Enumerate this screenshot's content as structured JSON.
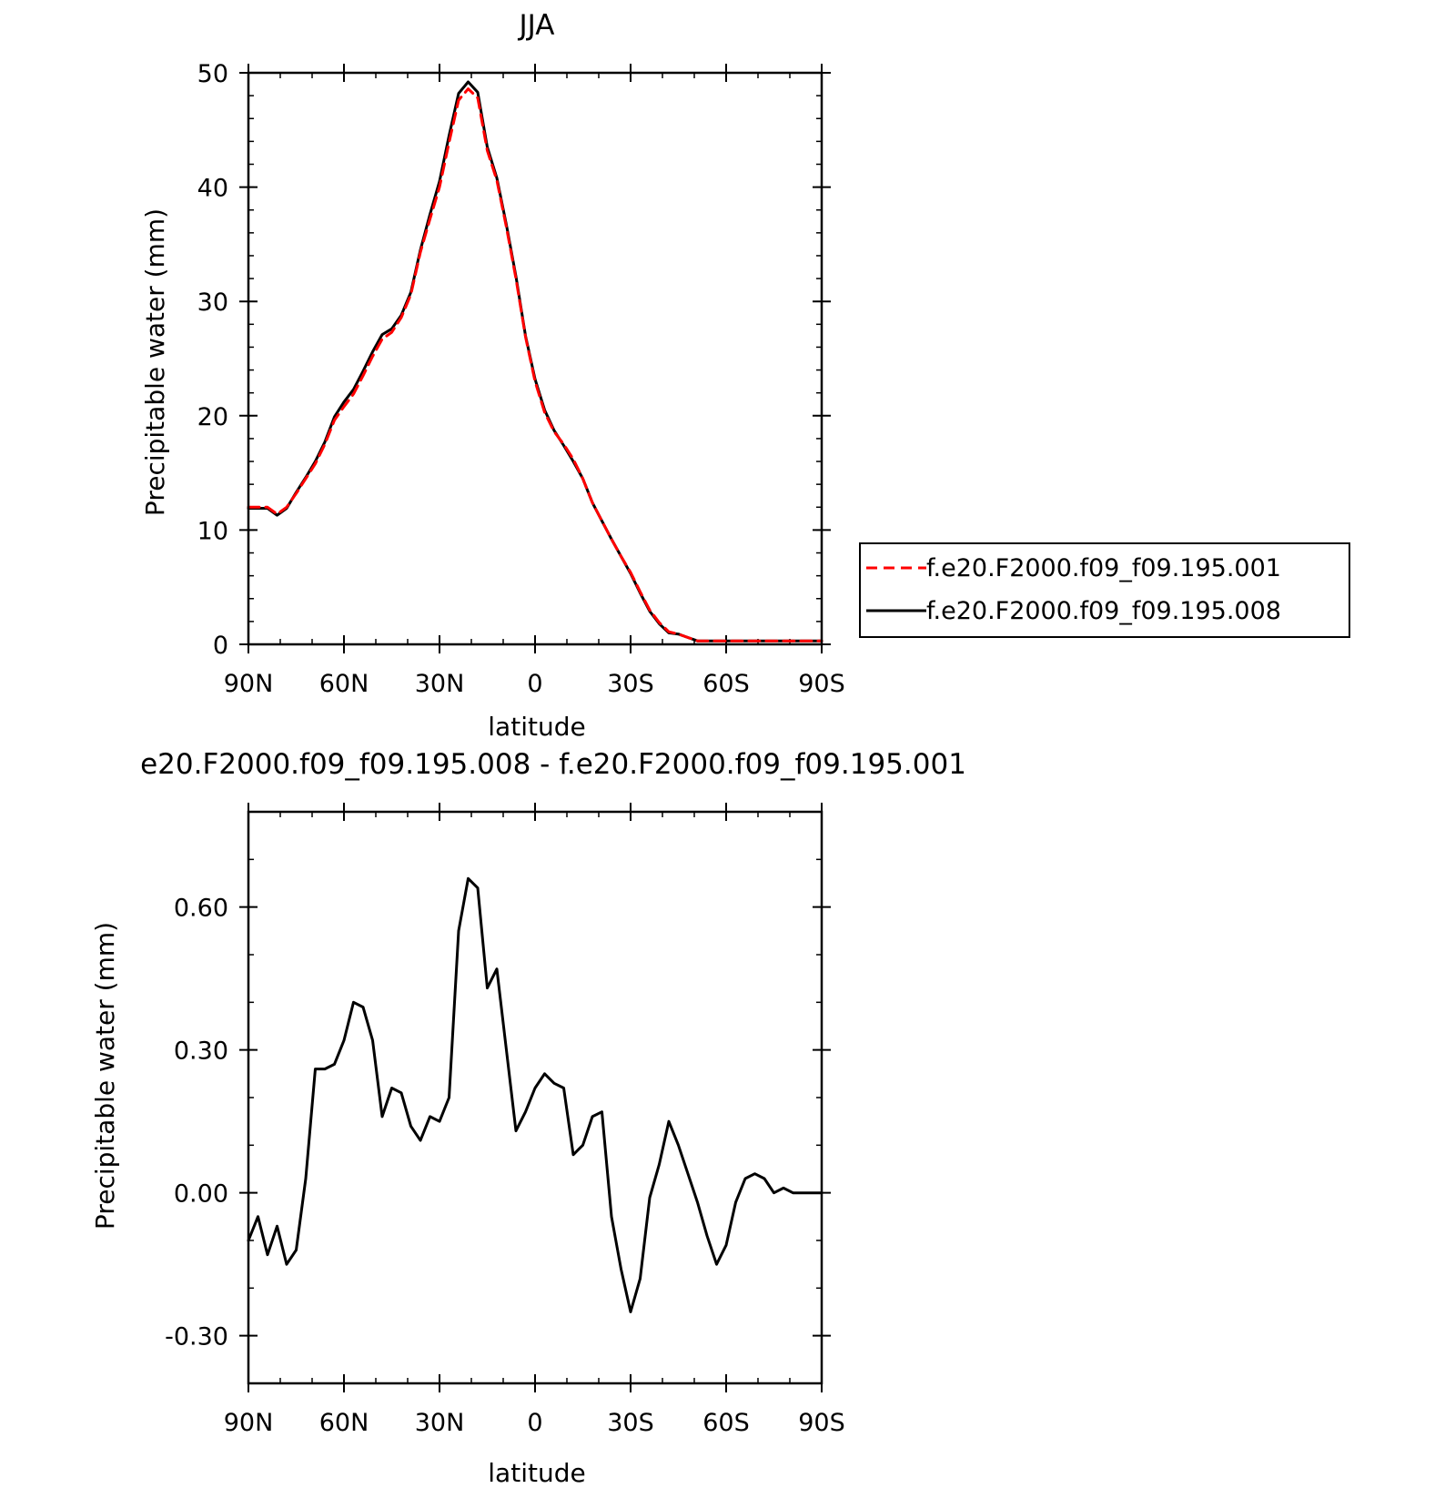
{
  "chart_data": [
    {
      "type": "line",
      "title": "JJA",
      "xlabel": "latitude",
      "ylabel": "Precipitable water (mm)",
      "x_axis_note": "latitude in degrees, north positive; axis runs from 90N on the left to 90S on the right",
      "xlim": [
        90,
        -90
      ],
      "ylim": [
        0,
        50
      ],
      "grid": false,
      "x_ticks": [
        {
          "value": 90,
          "label": "90N"
        },
        {
          "value": 60,
          "label": "60N"
        },
        {
          "value": 30,
          "label": "30N"
        },
        {
          "value": 0,
          "label": "0"
        },
        {
          "value": -30,
          "label": "30S"
        },
        {
          "value": -60,
          "label": "60S"
        },
        {
          "value": -90,
          "label": "90S"
        }
      ],
      "y_ticks": [
        {
          "value": 0,
          "label": "0"
        },
        {
          "value": 10,
          "label": "10"
        },
        {
          "value": 20,
          "label": "20"
        },
        {
          "value": 30,
          "label": "30"
        },
        {
          "value": 40,
          "label": "40"
        },
        {
          "value": 50,
          "label": "50"
        }
      ],
      "legend_position": "right, outside plot",
      "x": [
        90,
        87,
        84,
        81,
        78,
        75,
        72,
        69,
        66,
        63,
        60,
        57,
        54,
        51,
        48,
        45,
        42,
        39,
        36,
        33,
        30,
        27,
        24,
        21,
        18,
        15,
        12,
        9,
        6,
        3,
        0,
        -3,
        -6,
        -9,
        -12,
        -15,
        -18,
        -21,
        -24,
        -27,
        -30,
        -33,
        -36,
        -39,
        -42,
        -45,
        -48,
        -51,
        -54,
        -57,
        -60,
        -63,
        -66,
        -69,
        -72,
        -75,
        -78,
        -81,
        -84,
        -87,
        -90
      ],
      "series": [
        {
          "name": "f.e20.F2000.f09_f09.195.001",
          "color": "#ff0000",
          "dash": "dashed",
          "values": [
            12.0,
            12.0,
            12.0,
            11.4,
            12.0,
            13.2,
            14.5,
            15.8,
            17.5,
            19.6,
            20.8,
            21.9,
            23.5,
            25.2,
            26.7,
            27.3,
            28.6,
            30.6,
            34.3,
            37.2,
            40.0,
            43.9,
            47.6,
            48.6,
            47.8,
            43.2,
            40.6,
            36.5,
            32.0,
            26.9,
            23.0,
            20.3,
            18.6,
            17.5,
            16.2,
            14.5,
            12.4,
            10.8,
            9.2,
            7.7,
            6.3,
            4.6,
            3.0,
            1.9,
            1.1,
            0.9,
            0.6,
            0.3,
            0.3,
            0.3,
            0.3,
            0.3,
            0.3,
            0.3,
            0.3,
            0.3,
            0.3,
            0.3,
            0.3,
            0.3,
            0.3
          ]
        },
        {
          "name": "f.e20.F2000.f09_f09.195.008",
          "color": "#000000",
          "dash": "solid",
          "values": [
            11.9,
            11.9,
            11.9,
            11.3,
            11.9,
            13.3,
            14.6,
            16.0,
            17.7,
            19.9,
            21.2,
            22.3,
            23.9,
            25.6,
            27.1,
            27.6,
            28.8,
            30.8,
            34.5,
            37.6,
            40.5,
            44.5,
            48.2,
            49.2,
            48.3,
            43.5,
            40.8,
            36.7,
            32.2,
            27.0,
            23.2,
            20.5,
            18.7,
            17.4,
            16.0,
            14.5,
            12.4,
            10.8,
            9.2,
            7.7,
            6.2,
            4.5,
            2.9,
            1.8,
            1.0,
            0.9,
            0.6,
            0.3,
            0.3,
            0.3,
            0.3,
            0.3,
            0.3,
            0.3,
            0.3,
            0.3,
            0.3,
            0.3,
            0.3,
            0.3,
            0.3
          ]
        }
      ]
    },
    {
      "type": "line",
      "title": "e20.F2000.f09_f09.195.008 - f.e20.F2000.f09_f09.195.001",
      "xlabel": "latitude",
      "ylabel": "Precipitable water (mm)",
      "xlim": [
        90,
        -90
      ],
      "ylim": [
        -0.4,
        0.8
      ],
      "grid": false,
      "x_ticks": [
        {
          "value": 90,
          "label": "90N"
        },
        {
          "value": 60,
          "label": "60N"
        },
        {
          "value": 30,
          "label": "30N"
        },
        {
          "value": 0,
          "label": "0"
        },
        {
          "value": -30,
          "label": "30S"
        },
        {
          "value": -60,
          "label": "60S"
        },
        {
          "value": -90,
          "label": "90S"
        }
      ],
      "y_ticks": [
        {
          "value": -0.3,
          "label": "-0.30"
        },
        {
          "value": 0.0,
          "label": "0.00"
        },
        {
          "value": 0.3,
          "label": "0.30"
        },
        {
          "value": 0.6,
          "label": "0.60"
        }
      ],
      "x": [
        90,
        87,
        84,
        81,
        78,
        75,
        72,
        69,
        66,
        63,
        60,
        57,
        54,
        51,
        48,
        45,
        42,
        39,
        36,
        33,
        30,
        27,
        24,
        21,
        18,
        15,
        12,
        9,
        6,
        3,
        0,
        -3,
        -6,
        -9,
        -12,
        -15,
        -18,
        -21,
        -24,
        -27,
        -30,
        -33,
        -36,
        -39,
        -42,
        -45,
        -48,
        -51,
        -54,
        -57,
        -60,
        -63,
        -66,
        -69,
        -72,
        -75,
        -78,
        -81,
        -84,
        -87,
        -90
      ],
      "series": [
        {
          "color": "#000000",
          "dash": "solid",
          "values": [
            -0.1,
            -0.05,
            -0.13,
            -0.07,
            -0.15,
            -0.12,
            0.03,
            0.26,
            0.26,
            0.27,
            0.32,
            0.4,
            0.39,
            0.32,
            0.16,
            0.22,
            0.21,
            0.14,
            0.11,
            0.16,
            0.15,
            0.2,
            0.55,
            0.66,
            0.64,
            0.43,
            0.47,
            0.3,
            0.13,
            0.17,
            0.22,
            0.25,
            0.23,
            0.22,
            0.08,
            0.1,
            0.16,
            0.17,
            -0.05,
            -0.16,
            -0.25,
            -0.18,
            -0.01,
            0.06,
            0.15,
            0.1,
            0.04,
            -0.02,
            -0.09,
            -0.15,
            -0.11,
            -0.02,
            0.03,
            0.04,
            0.03,
            0.0,
            0.01,
            0.0,
            0.0,
            0.0,
            0.0
          ]
        }
      ]
    }
  ]
}
